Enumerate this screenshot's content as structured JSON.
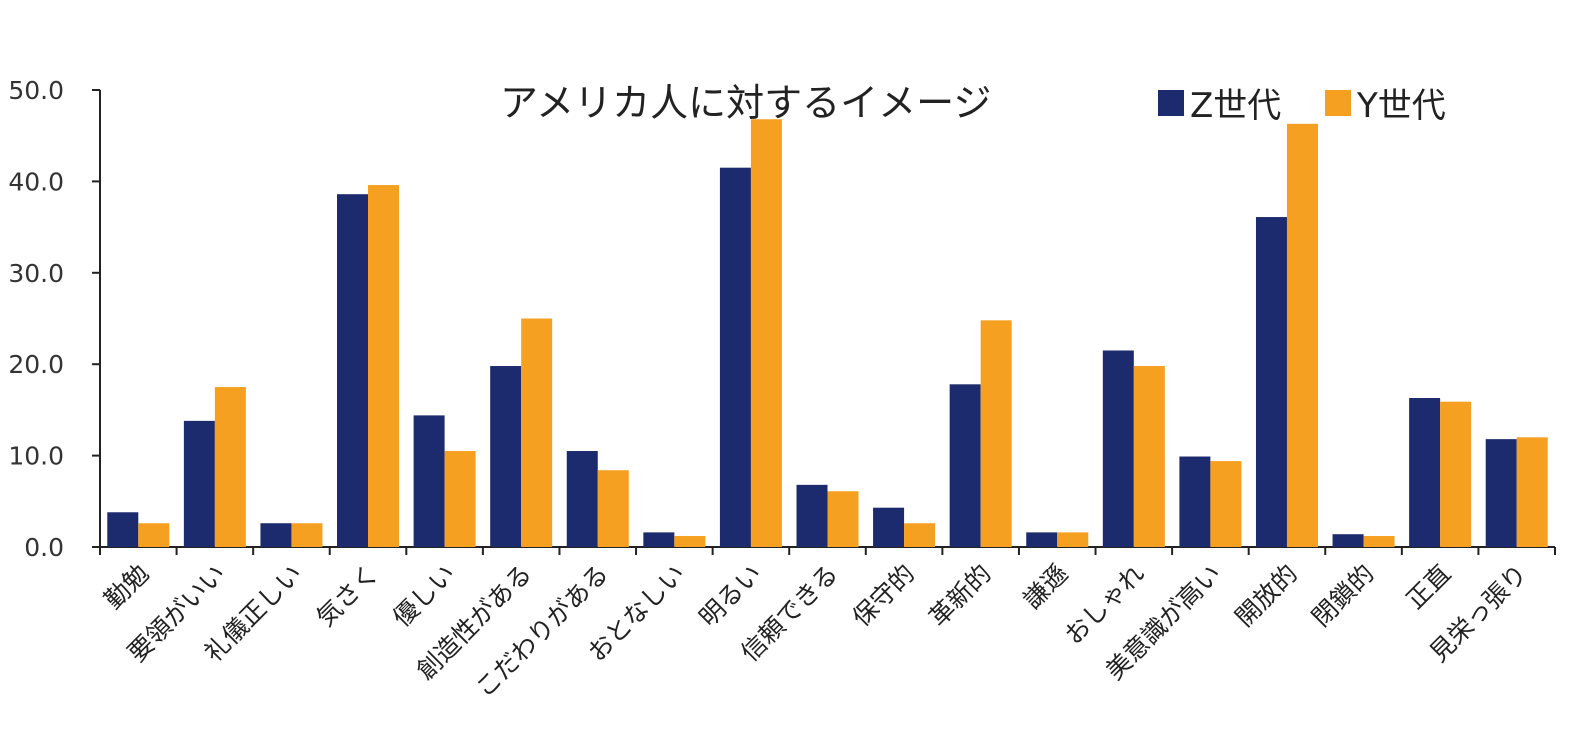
{
  "chart_data": {
    "type": "bar",
    "title": "アメリカ人に対するイメージ",
    "categories": [
      "勤勉",
      "要領がいい",
      "礼儀正しい",
      "気さく",
      "優しい",
      "創造性がある",
      "こだわりがある",
      "おとなしい",
      "明るい",
      "信頼できる",
      "保守的",
      "革新的",
      "謙遜",
      "おしゃれ",
      "美意識が高い",
      "開放的",
      "閉鎖的",
      "正直",
      "見栄っ張り"
    ],
    "series": [
      {
        "name": "Z世代",
        "color": "#1c2a6e",
        "values": [
          3.8,
          13.8,
          2.6,
          38.6,
          14.4,
          19.8,
          10.5,
          1.6,
          41.5,
          6.8,
          4.3,
          17.8,
          1.6,
          21.5,
          9.9,
          36.1,
          1.4,
          16.3,
          11.8
        ]
      },
      {
        "name": "Y世代",
        "color": "#f5a020",
        "values": [
          2.6,
          17.5,
          2.6,
          39.6,
          10.5,
          25.0,
          8.4,
          1.2,
          46.8,
          6.1,
          2.6,
          24.8,
          1.6,
          19.8,
          9.4,
          46.3,
          1.2,
          15.9,
          12.0
        ]
      }
    ],
    "ylim": [
      0,
      50
    ],
    "yticks": [
      "0.0",
      "10.0",
      "20.0",
      "30.0",
      "40.0",
      "50.0"
    ],
    "xlabel": "",
    "ylabel": "",
    "legend": "top-right",
    "grid": false
  }
}
